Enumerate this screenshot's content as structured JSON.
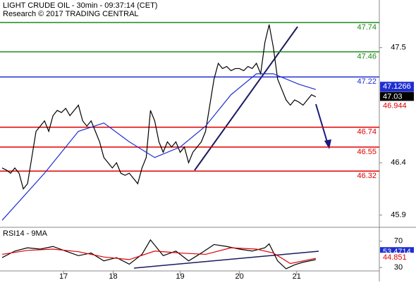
{
  "chart_data": [
    {
      "type": "line",
      "title": "LIGHT CRUDE OIL - 30min - 09:37:14 (CET)",
      "subtitle": "Research © 2017 TRADING CENTRAL",
      "xlim": [
        -0.5,
        89
      ],
      "ylim": [
        45.79,
        47.955
      ],
      "xticks": [
        {
          "value": 14.5,
          "label": "17"
        },
        {
          "value": 26.2,
          "label": "18"
        },
        {
          "value": 42,
          "label": "19"
        },
        {
          "value": 56,
          "label": "20"
        },
        {
          "value": 69.5,
          "label": "21"
        }
      ],
      "yticks": [
        47.5,
        46.4,
        45.9
      ],
      "series": [
        {
          "color": "#000000",
          "x": [
            0,
            1,
            2,
            3,
            4,
            5,
            6,
            7,
            8,
            9,
            10,
            11,
            12,
            13,
            14,
            15,
            16,
            17,
            18,
            19,
            20,
            21,
            22,
            23,
            24,
            25,
            26,
            27,
            28,
            29,
            30,
            31,
            32,
            33,
            34,
            35,
            36,
            37,
            38,
            39,
            40,
            41,
            42,
            43,
            44,
            45,
            46,
            47,
            48,
            49,
            50,
            51,
            52,
            53,
            54,
            55,
            56,
            57,
            58,
            59,
            60,
            61,
            62,
            63,
            64,
            65,
            66,
            67,
            68,
            69,
            70,
            71,
            72,
            73,
            74
          ],
          "values": [
            46.35,
            46.33,
            46.3,
            46.35,
            46.3,
            46.15,
            46.2,
            46.45,
            46.7,
            46.75,
            46.8,
            46.7,
            46.85,
            46.9,
            46.88,
            46.92,
            46.85,
            46.9,
            46.95,
            46.8,
            46.75,
            46.8,
            46.7,
            46.6,
            46.45,
            46.4,
            46.35,
            46.4,
            46.3,
            46.28,
            46.3,
            46.25,
            46.2,
            46.35,
            46.45,
            46.9,
            46.8,
            46.6,
            46.5,
            46.6,
            46.55,
            46.6,
            46.5,
            46.55,
            46.4,
            46.5,
            46.55,
            46.6,
            46.7,
            46.95,
            47.2,
            47.35,
            47.3,
            47.32,
            47.28,
            47.3,
            47.3,
            47.28,
            47.32,
            47.3,
            47.35,
            47.25,
            47.55,
            47.72,
            47.5,
            47.2,
            47.1,
            47.0,
            46.95,
            47.0,
            46.98,
            46.95,
            47.0,
            47.05,
            47.03
          ]
        },
        {
          "color": "#1f2fd0",
          "x": [
            0,
            10,
            18,
            24,
            30,
            36,
            42,
            48,
            54,
            60,
            64,
            70,
            74
          ],
          "values": [
            45.85,
            46.3,
            46.7,
            46.78,
            46.6,
            46.45,
            46.55,
            46.75,
            47.05,
            47.25,
            47.25,
            47.15,
            47.1
          ]
        }
      ],
      "levels": [
        {
          "value": 47.74,
          "color": "#1a8a1a"
        },
        {
          "value": 47.46,
          "color": "#1a8a1a"
        },
        {
          "value": 47.22,
          "color": "#1f2fd0"
        },
        {
          "value": 46.74,
          "color": "#e00000"
        },
        {
          "value": 46.55,
          "color": "#e00000"
        },
        {
          "value": 46.32,
          "color": "#e00000"
        }
      ],
      "last_values": [
        {
          "value": 47.1266,
          "color": "#1f2fd0"
        },
        {
          "value": 47.03,
          "color": "#000000"
        },
        {
          "value": 46.944,
          "color": "#e00000"
        }
      ]
    },
    {
      "type": "line",
      "title": "RSI14 - 9MA",
      "ylim": [
        14,
        88
      ],
      "yticks": [
        70,
        30
      ],
      "series": [
        {
          "color": "#000000",
          "x": [
            0,
            3,
            6,
            9,
            12,
            15,
            18,
            21,
            24,
            27,
            30,
            33,
            35,
            38,
            41,
            44,
            47,
            50,
            53,
            56,
            59,
            62,
            63,
            65,
            67,
            69,
            71,
            74
          ],
          "values": [
            45,
            55,
            60,
            58,
            62,
            55,
            48,
            52,
            40,
            45,
            35,
            50,
            72,
            48,
            55,
            40,
            52,
            65,
            62,
            58,
            55,
            60,
            66,
            40,
            28,
            34,
            38,
            42
          ]
        },
        {
          "color": "#e00000",
          "x": [
            0,
            6,
            12,
            18,
            24,
            30,
            36,
            42,
            48,
            54,
            60,
            64,
            68,
            74
          ],
          "values": [
            50,
            56,
            58,
            54,
            46,
            42,
            55,
            52,
            50,
            60,
            58,
            52,
            36,
            44
          ]
        }
      ],
      "last_values": [
        {
          "value": 53.4714,
          "color": "#1f2fd0"
        },
        {
          "value": 44.851,
          "color": "#e00000"
        }
      ]
    }
  ]
}
